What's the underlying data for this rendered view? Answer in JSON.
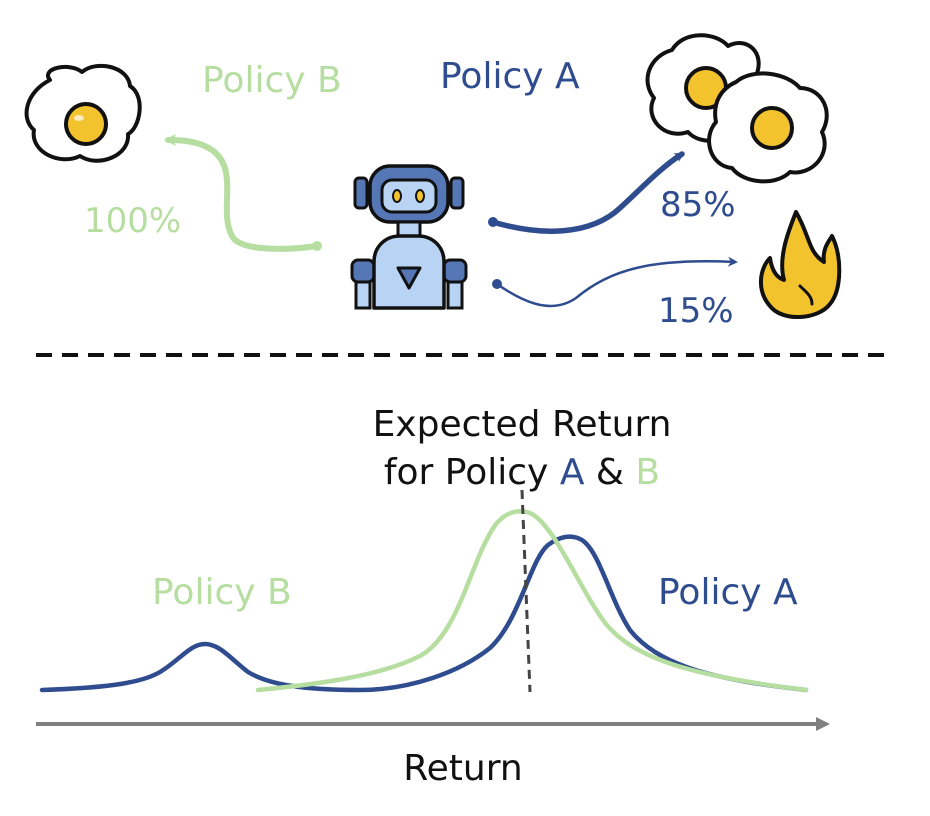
{
  "top": {
    "policy_b_label": "Policy B",
    "policy_a_label": "Policy A",
    "policy_b_prob": "100%",
    "policy_a_success_prob": "85%",
    "policy_a_fail_prob": "15%",
    "icons": [
      "fried-egg-icon",
      "robot-icon",
      "two-fried-eggs-icon",
      "fire-icon"
    ]
  },
  "bottom": {
    "expected_line1": "Expected Return",
    "expected_line2_prefix": "for Policy ",
    "expected_a": "A",
    "expected_amp": " & ",
    "expected_b": "B",
    "policy_b_label": "Policy B",
    "policy_a_label": "Policy A",
    "axis_label": "Return"
  },
  "colors": {
    "policy_a": "#2f4c8f",
    "policy_b": "#b6dea0",
    "egg_yolk": "#f2c32c",
    "fire": "#f2c32c",
    "robot_blue": "#5577b5",
    "robot_light": "#b9d3f4",
    "axis": "#808080"
  }
}
